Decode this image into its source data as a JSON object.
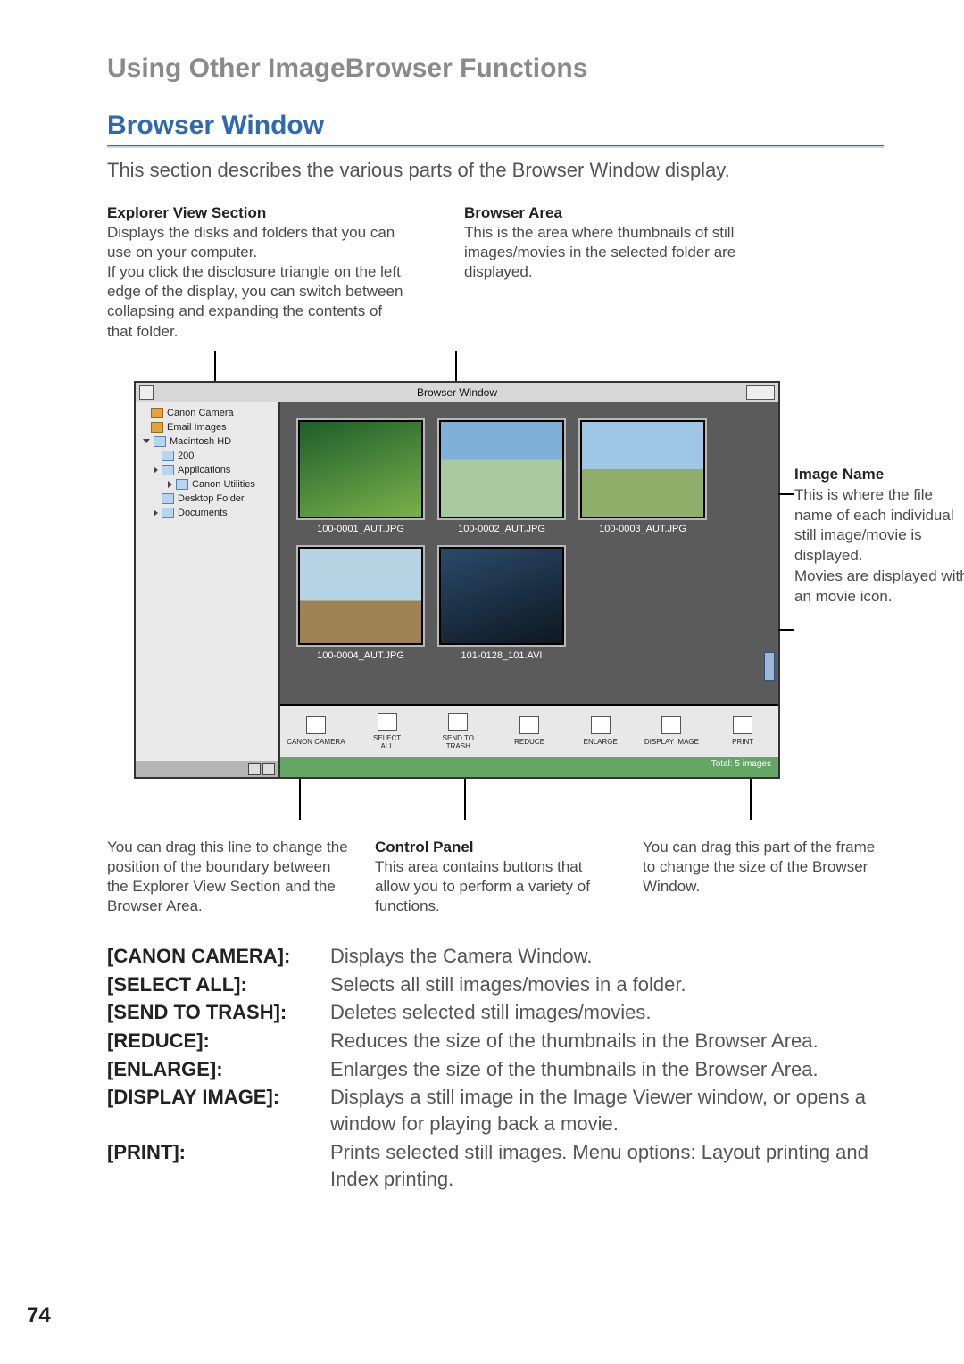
{
  "page": {
    "gray_title": "Using Other ImageBrowser Functions",
    "section_title": "Browser Window",
    "intro": "This section describes the various parts of the Browser Window display.",
    "page_number": "74"
  },
  "callouts": {
    "explorer": {
      "title": "Explorer View Section",
      "body": "Displays the disks and folders that you can use on your computer.\nIf you click the disclosure triangle on the left edge of the display, you can switch between collapsing and expanding the contents of that folder."
    },
    "browser_area": {
      "title": "Browser Area",
      "body": "This is the area where thumbnails of still images/movies in the selected folder are displayed."
    },
    "image_name": {
      "title": "Image Name",
      "body": "This is where the file name of each individual still image/movie is displayed.",
      "body2": "Movies are displayed with an movie icon."
    },
    "drag_line": "You can drag this line to change the position of the boundary between the Explorer View Section and the Browser Area.",
    "control_panel": {
      "title": "Control Panel",
      "body": "This area contains buttons that allow you to perform a variety of functions."
    },
    "drag_corner": "You can drag this part of the frame to change the size of the Browser Window."
  },
  "screenshot": {
    "window_title": "Browser Window",
    "tree": [
      {
        "indent": 0,
        "icon": "cam",
        "label": "Canon Camera"
      },
      {
        "indent": 0,
        "icon": "cam",
        "label": "Email Images"
      },
      {
        "indent": 0,
        "icon": "folder",
        "label": "Macintosh HD",
        "tri": "down"
      },
      {
        "indent": 1,
        "icon": "folder",
        "label": "200"
      },
      {
        "indent": 1,
        "icon": "folder",
        "label": "Applications",
        "tri": "right"
      },
      {
        "indent": 2,
        "icon": "folder",
        "label": "Canon Utilities",
        "tri": "right"
      },
      {
        "indent": 1,
        "icon": "folder",
        "label": "Desktop Folder"
      },
      {
        "indent": 1,
        "icon": "folder",
        "label": "Documents",
        "tri": "right"
      }
    ],
    "thumbs": [
      {
        "label": "100-0001_AUT.JPG",
        "bg": "linear-gradient(160deg,#1d5e2a,#7ab04a)"
      },
      {
        "label": "100-0002_AUT.JPG",
        "bg": "linear-gradient(180deg,#7fb0d8 40%,#a8c8a0 40%)"
      },
      {
        "label": "100-0003_AUT.JPG",
        "bg": "linear-gradient(180deg,#9fc6e4 50%,#8fae6a 50%)"
      },
      {
        "label": "100-0004_AUT.JPG",
        "bg": "linear-gradient(180deg,#b7d4e4 55%,#9e8254 55%)"
      },
      {
        "label": "101-0128_101.AVI",
        "bg": "linear-gradient(160deg,#2a4a6a,#0e1720)"
      }
    ],
    "toolbar": [
      {
        "label": "CANON CAMERA"
      },
      {
        "label": "SELECT\nALL"
      },
      {
        "label": "SEND TO\nTRASH"
      },
      {
        "label": "REDUCE"
      },
      {
        "label": "ENLARGE"
      },
      {
        "label": "DISPLAY IMAGE"
      },
      {
        "label": "PRINT"
      }
    ],
    "status": "Total: 5 images"
  },
  "defs": [
    {
      "term": "[CANON CAMERA]:",
      "desc": "Displays the Camera Window."
    },
    {
      "term": "[SELECT ALL]:",
      "desc": "Selects all still images/movies in a folder."
    },
    {
      "term": "[SEND TO TRASH]:",
      "desc": "Deletes selected still images/movies."
    },
    {
      "term": "[REDUCE]:",
      "desc": "Reduces the size of the thumbnails in the Browser Area."
    },
    {
      "term": "[ENLARGE]:",
      "desc": "Enlarges the size of the thumbnails in the Browser Area."
    },
    {
      "term": "[DISPLAY IMAGE]:",
      "desc": "Displays a still image in the Image Viewer window, or opens a window for playing back a movie."
    },
    {
      "term": "[PRINT]:",
      "desc": "Prints selected still images. Menu options: Layout printing and Index printing."
    }
  ]
}
